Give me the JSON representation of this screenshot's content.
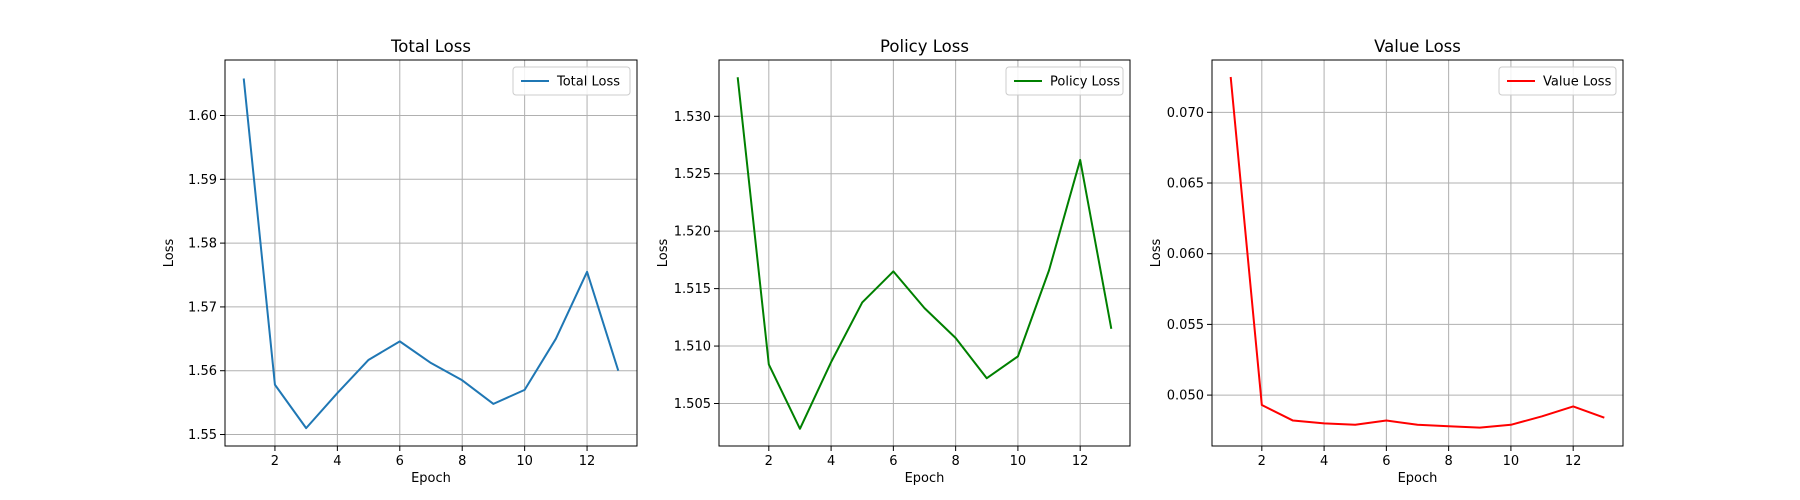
{
  "chart_data": [
    {
      "type": "line",
      "title": "Total Loss",
      "xlabel": "Epoch",
      "ylabel": "Loss",
      "x": [
        1,
        2,
        3,
        4,
        5,
        6,
        7,
        8,
        9,
        10,
        11,
        12,
        13
      ],
      "series": [
        {
          "name": "Total Loss",
          "color": "#1f77b4",
          "values": [
            1.6058,
            1.5578,
            1.551,
            1.5565,
            1.5617,
            1.5646,
            1.5612,
            1.5585,
            1.5548,
            1.557,
            1.565,
            1.5755,
            1.56
          ]
        }
      ],
      "xlim": [
        0.4,
        13.6
      ],
      "ylim": [
        1.5482,
        1.6087
      ],
      "xticks": [
        2,
        4,
        6,
        8,
        10,
        12
      ],
      "yticks": [
        1.55,
        1.56,
        1.57,
        1.58,
        1.59,
        1.6
      ],
      "ytick_labels": [
        "1.55",
        "1.56",
        "1.57",
        "1.58",
        "1.59",
        "1.60"
      ],
      "grid": true,
      "legend": "upper right"
    },
    {
      "type": "line",
      "title": "Policy Loss",
      "xlabel": "Epoch",
      "ylabel": "Loss",
      "x": [
        1,
        2,
        3,
        4,
        5,
        6,
        7,
        8,
        9,
        10,
        11,
        12,
        13
      ],
      "series": [
        {
          "name": "Policy Loss",
          "color": "#008000",
          "values": [
            1.5334,
            1.5084,
            1.5028,
            1.5086,
            1.5138,
            1.5165,
            1.5133,
            1.5107,
            1.5072,
            1.5091,
            1.5166,
            1.5262,
            1.5115
          ]
        }
      ],
      "xlim": [
        0.4,
        13.6
      ],
      "ylim": [
        1.5013,
        1.5349
      ],
      "xticks": [
        2,
        4,
        6,
        8,
        10,
        12
      ],
      "yticks": [
        1.505,
        1.51,
        1.515,
        1.52,
        1.525,
        1.53
      ],
      "ytick_labels": [
        "1.505",
        "1.510",
        "1.515",
        "1.520",
        "1.525",
        "1.530"
      ],
      "grid": true,
      "legend": "upper right"
    },
    {
      "type": "line",
      "title": "Value Loss",
      "xlabel": "Epoch",
      "ylabel": "Loss",
      "x": [
        1,
        2,
        3,
        4,
        5,
        6,
        7,
        8,
        9,
        10,
        11,
        12,
        13
      ],
      "series": [
        {
          "name": "Value Loss",
          "color": "#ff0000",
          "values": [
            0.0725,
            0.0493,
            0.0482,
            0.048,
            0.0479,
            0.0482,
            0.0479,
            0.0478,
            0.0477,
            0.0479,
            0.0485,
            0.0492,
            0.0484
          ]
        }
      ],
      "xlim": [
        0.4,
        13.6
      ],
      "ylim": [
        0.0464,
        0.0737
      ],
      "xticks": [
        2,
        4,
        6,
        8,
        10,
        12
      ],
      "yticks": [
        0.05,
        0.055,
        0.06,
        0.065,
        0.07
      ],
      "ytick_labels": [
        "0.050",
        "0.055",
        "0.060",
        "0.065",
        "0.070"
      ],
      "grid": true,
      "legend": "upper right"
    }
  ]
}
